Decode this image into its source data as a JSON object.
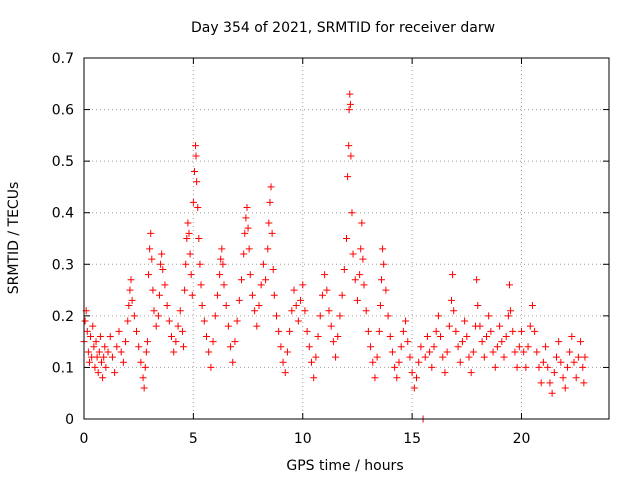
{
  "chart_data": {
    "type": "scatter",
    "title": "Day 354 of 2021, SRMTID for receiver darw",
    "xlabel": "GPS time / hours",
    "ylabel": "SRMTID / TECUs",
    "xlim": [
      0,
      24
    ],
    "ylim": [
      0,
      0.7
    ],
    "xticks": [
      "0",
      "5",
      "10",
      "15",
      "20"
    ],
    "xtick_values": [
      0,
      5,
      10,
      15,
      20
    ],
    "yticks": [
      "0",
      "0.1",
      "0.2",
      "0.3",
      "0.4",
      "0.5",
      "0.6",
      "0.7"
    ],
    "ytick_values": [
      0,
      0.1,
      0.2,
      0.3,
      0.4,
      0.5,
      0.6,
      0.7
    ],
    "grid": true,
    "marker": "plus",
    "color": "#ff0000",
    "series": [
      {
        "name": "SRMTID",
        "points": [
          [
            0.0,
            0.15
          ],
          [
            0.05,
            0.19
          ],
          [
            0.1,
            0.21
          ],
          [
            0.15,
            0.17
          ],
          [
            0.2,
            0.13
          ],
          [
            0.25,
            0.11
          ],
          [
            0.3,
            0.16
          ],
          [
            0.35,
            0.12
          ],
          [
            0.4,
            0.18
          ],
          [
            0.45,
            0.14
          ],
          [
            0.5,
            0.1
          ],
          [
            0.55,
            0.15
          ],
          [
            0.6,
            0.12
          ],
          [
            0.65,
            0.09
          ],
          [
            0.7,
            0.13
          ],
          [
            0.75,
            0.16
          ],
          [
            0.8,
            0.11
          ],
          [
            0.85,
            0.08
          ],
          [
            0.9,
            0.12
          ],
          [
            0.95,
            0.14
          ],
          [
            1.0,
            0.1
          ],
          [
            1.1,
            0.13
          ],
          [
            1.2,
            0.16
          ],
          [
            1.3,
            0.12
          ],
          [
            1.4,
            0.09
          ],
          [
            1.5,
            0.14
          ],
          [
            1.6,
            0.17
          ],
          [
            1.7,
            0.13
          ],
          [
            1.8,
            0.11
          ],
          [
            1.9,
            0.15
          ],
          [
            2.0,
            0.19
          ],
          [
            2.05,
            0.22
          ],
          [
            2.1,
            0.25
          ],
          [
            2.15,
            0.27
          ],
          [
            2.2,
            0.23
          ],
          [
            2.3,
            0.2
          ],
          [
            2.4,
            0.17
          ],
          [
            2.5,
            0.14
          ],
          [
            2.6,
            0.11
          ],
          [
            2.7,
            0.08
          ],
          [
            2.75,
            0.06
          ],
          [
            2.8,
            0.1
          ],
          [
            2.85,
            0.13
          ],
          [
            2.9,
            0.15
          ],
          [
            2.95,
            0.28
          ],
          [
            3.0,
            0.33
          ],
          [
            3.05,
            0.36
          ],
          [
            3.1,
            0.31
          ],
          [
            3.15,
            0.25
          ],
          [
            3.2,
            0.21
          ],
          [
            3.3,
            0.18
          ],
          [
            3.4,
            0.2
          ],
          [
            3.45,
            0.24
          ],
          [
            3.5,
            0.3
          ],
          [
            3.55,
            0.32
          ],
          [
            3.6,
            0.29
          ],
          [
            3.7,
            0.26
          ],
          [
            3.8,
            0.22
          ],
          [
            3.9,
            0.19
          ],
          [
            4.0,
            0.16
          ],
          [
            4.1,
            0.13
          ],
          [
            4.2,
            0.15
          ],
          [
            4.3,
            0.18
          ],
          [
            4.4,
            0.21
          ],
          [
            4.5,
            0.17
          ],
          [
            4.55,
            0.14
          ],
          [
            4.6,
            0.25
          ],
          [
            4.65,
            0.3
          ],
          [
            4.7,
            0.35
          ],
          [
            4.75,
            0.38
          ],
          [
            4.8,
            0.36
          ],
          [
            4.85,
            0.32
          ],
          [
            4.9,
            0.28
          ],
          [
            4.95,
            0.24
          ],
          [
            5.0,
            0.42
          ],
          [
            5.05,
            0.48
          ],
          [
            5.1,
            0.53
          ],
          [
            5.12,
            0.51
          ],
          [
            5.15,
            0.46
          ],
          [
            5.2,
            0.41
          ],
          [
            5.25,
            0.35
          ],
          [
            5.3,
            0.3
          ],
          [
            5.35,
            0.26
          ],
          [
            5.4,
            0.22
          ],
          [
            5.5,
            0.19
          ],
          [
            5.6,
            0.16
          ],
          [
            5.7,
            0.13
          ],
          [
            5.8,
            0.1
          ],
          [
            5.9,
            0.15
          ],
          [
            6.0,
            0.2
          ],
          [
            6.1,
            0.24
          ],
          [
            6.2,
            0.28
          ],
          [
            6.25,
            0.31
          ],
          [
            6.3,
            0.33
          ],
          [
            6.35,
            0.3
          ],
          [
            6.4,
            0.26
          ],
          [
            6.5,
            0.22
          ],
          [
            6.6,
            0.18
          ],
          [
            6.7,
            0.14
          ],
          [
            6.8,
            0.11
          ],
          [
            6.9,
            0.15
          ],
          [
            7.0,
            0.19
          ],
          [
            7.1,
            0.23
          ],
          [
            7.2,
            0.27
          ],
          [
            7.3,
            0.32
          ],
          [
            7.35,
            0.36
          ],
          [
            7.4,
            0.39
          ],
          [
            7.45,
            0.41
          ],
          [
            7.5,
            0.37
          ],
          [
            7.55,
            0.33
          ],
          [
            7.6,
            0.28
          ],
          [
            7.7,
            0.24
          ],
          [
            7.8,
            0.21
          ],
          [
            7.9,
            0.18
          ],
          [
            8.0,
            0.22
          ],
          [
            8.1,
            0.26
          ],
          [
            8.2,
            0.3
          ],
          [
            8.3,
            0.27
          ],
          [
            8.4,
            0.33
          ],
          [
            8.45,
            0.38
          ],
          [
            8.5,
            0.42
          ],
          [
            8.55,
            0.45
          ],
          [
            8.6,
            0.36
          ],
          [
            8.65,
            0.29
          ],
          [
            8.7,
            0.24
          ],
          [
            8.8,
            0.2
          ],
          [
            8.9,
            0.17
          ],
          [
            9.0,
            0.14
          ],
          [
            9.1,
            0.11
          ],
          [
            9.2,
            0.09
          ],
          [
            9.3,
            0.13
          ],
          [
            9.4,
            0.17
          ],
          [
            9.5,
            0.21
          ],
          [
            9.6,
            0.25
          ],
          [
            9.7,
            0.22
          ],
          [
            9.8,
            0.19
          ],
          [
            9.9,
            0.23
          ],
          [
            10.0,
            0.26
          ],
          [
            10.1,
            0.21
          ],
          [
            10.2,
            0.17
          ],
          [
            10.3,
            0.14
          ],
          [
            10.4,
            0.11
          ],
          [
            10.5,
            0.08
          ],
          [
            10.6,
            0.12
          ],
          [
            10.7,
            0.16
          ],
          [
            10.8,
            0.2
          ],
          [
            10.9,
            0.24
          ],
          [
            11.0,
            0.28
          ],
          [
            11.1,
            0.25
          ],
          [
            11.2,
            0.21
          ],
          [
            11.3,
            0.18
          ],
          [
            11.4,
            0.15
          ],
          [
            11.5,
            0.12
          ],
          [
            11.6,
            0.16
          ],
          [
            11.7,
            0.2
          ],
          [
            11.8,
            0.24
          ],
          [
            11.9,
            0.29
          ],
          [
            12.0,
            0.35
          ],
          [
            12.05,
            0.47
          ],
          [
            12.1,
            0.53
          ],
          [
            12.12,
            0.6
          ],
          [
            12.15,
            0.63
          ],
          [
            12.18,
            0.61
          ],
          [
            12.2,
            0.51
          ],
          [
            12.25,
            0.4
          ],
          [
            12.3,
            0.32
          ],
          [
            12.4,
            0.27
          ],
          [
            12.5,
            0.23
          ],
          [
            12.6,
            0.28
          ],
          [
            12.65,
            0.33
          ],
          [
            12.7,
            0.38
          ],
          [
            12.75,
            0.31
          ],
          [
            12.8,
            0.26
          ],
          [
            12.9,
            0.21
          ],
          [
            13.0,
            0.17
          ],
          [
            13.1,
            0.14
          ],
          [
            13.2,
            0.11
          ],
          [
            13.3,
            0.08
          ],
          [
            13.4,
            0.12
          ],
          [
            13.5,
            0.17
          ],
          [
            13.55,
            0.22
          ],
          [
            13.6,
            0.27
          ],
          [
            13.65,
            0.33
          ],
          [
            13.7,
            0.3
          ],
          [
            13.8,
            0.25
          ],
          [
            13.9,
            0.2
          ],
          [
            14.0,
            0.16
          ],
          [
            14.1,
            0.13
          ],
          [
            14.2,
            0.1
          ],
          [
            14.3,
            0.08
          ],
          [
            14.4,
            0.11
          ],
          [
            14.5,
            0.14
          ],
          [
            14.6,
            0.17
          ],
          [
            14.7,
            0.19
          ],
          [
            14.8,
            0.15
          ],
          [
            14.9,
            0.12
          ],
          [
            15.0,
            0.09
          ],
          [
            15.1,
            0.06
          ],
          [
            15.2,
            0.08
          ],
          [
            15.3,
            0.11
          ],
          [
            15.4,
            0.14
          ],
          [
            15.5,
            0.0
          ],
          [
            15.6,
            0.12
          ],
          [
            15.7,
            0.16
          ],
          [
            15.8,
            0.13
          ],
          [
            15.9,
            0.1
          ],
          [
            16.0,
            0.14
          ],
          [
            16.1,
            0.17
          ],
          [
            16.2,
            0.2
          ],
          [
            16.3,
            0.16
          ],
          [
            16.4,
            0.12
          ],
          [
            16.5,
            0.09
          ],
          [
            16.6,
            0.13
          ],
          [
            16.7,
            0.18
          ],
          [
            16.8,
            0.23
          ],
          [
            16.85,
            0.28
          ],
          [
            16.9,
            0.21
          ],
          [
            17.0,
            0.17
          ],
          [
            17.1,
            0.14
          ],
          [
            17.2,
            0.11
          ],
          [
            17.3,
            0.15
          ],
          [
            17.4,
            0.19
          ],
          [
            17.5,
            0.16
          ],
          [
            17.6,
            0.12
          ],
          [
            17.7,
            0.09
          ],
          [
            17.8,
            0.13
          ],
          [
            17.9,
            0.18
          ],
          [
            17.95,
            0.27
          ],
          [
            18.0,
            0.22
          ],
          [
            18.1,
            0.18
          ],
          [
            18.2,
            0.15
          ],
          [
            18.3,
            0.12
          ],
          [
            18.4,
            0.16
          ],
          [
            18.5,
            0.2
          ],
          [
            18.6,
            0.17
          ],
          [
            18.7,
            0.13
          ],
          [
            18.8,
            0.1
          ],
          [
            18.9,
            0.14
          ],
          [
            19.0,
            0.18
          ],
          [
            19.1,
            0.15
          ],
          [
            19.2,
            0.12
          ],
          [
            19.3,
            0.16
          ],
          [
            19.4,
            0.2
          ],
          [
            19.45,
            0.26
          ],
          [
            19.5,
            0.21
          ],
          [
            19.6,
            0.17
          ],
          [
            19.7,
            0.13
          ],
          [
            19.8,
            0.1
          ],
          [
            19.9,
            0.14
          ],
          [
            20.0,
            0.17
          ],
          [
            20.1,
            0.13
          ],
          [
            20.2,
            0.1
          ],
          [
            20.3,
            0.14
          ],
          [
            20.4,
            0.18
          ],
          [
            20.5,
            0.22
          ],
          [
            20.6,
            0.17
          ],
          [
            20.7,
            0.13
          ],
          [
            20.8,
            0.1
          ],
          [
            20.9,
            0.07
          ],
          [
            21.0,
            0.11
          ],
          [
            21.1,
            0.14
          ],
          [
            21.2,
            0.1
          ],
          [
            21.3,
            0.07
          ],
          [
            21.4,
            0.05
          ],
          [
            21.5,
            0.09
          ],
          [
            21.6,
            0.12
          ],
          [
            21.7,
            0.15
          ],
          [
            21.8,
            0.11
          ],
          [
            21.9,
            0.08
          ],
          [
            22.0,
            0.06
          ],
          [
            22.1,
            0.1
          ],
          [
            22.2,
            0.13
          ],
          [
            22.3,
            0.16
          ],
          [
            22.4,
            0.11
          ],
          [
            22.5,
            0.08
          ],
          [
            22.6,
            0.12
          ],
          [
            22.7,
            0.15
          ],
          [
            22.8,
            0.1
          ],
          [
            22.85,
            0.07
          ],
          [
            22.9,
            0.12
          ]
        ]
      }
    ]
  }
}
